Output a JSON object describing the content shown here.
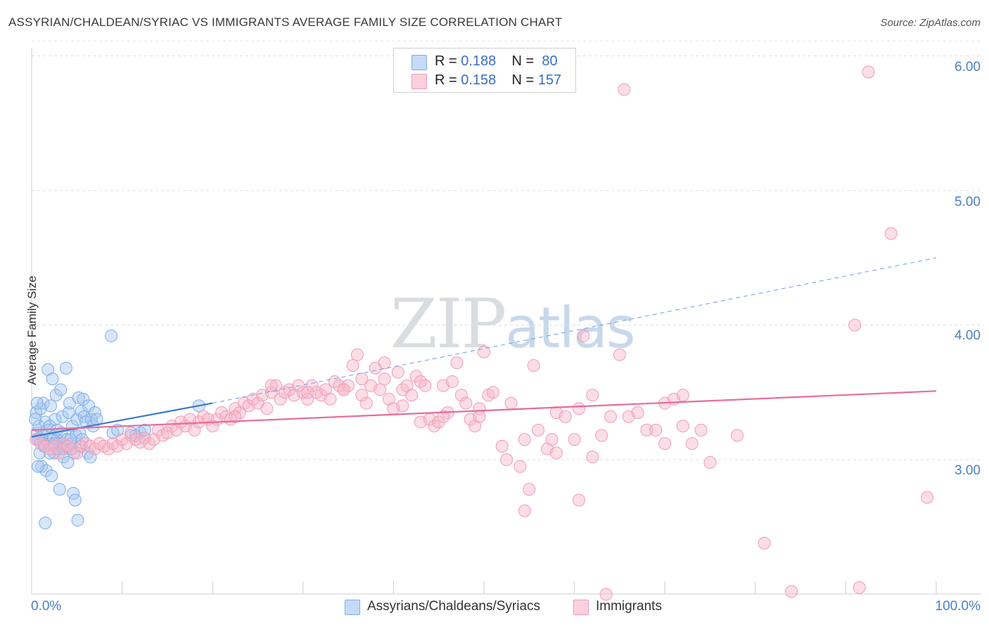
{
  "title": "ASSYRIAN/CHALDEAN/SYRIAC VS IMMIGRANTS AVERAGE FAMILY SIZE CORRELATION CHART",
  "source": "Source: ZipAtlas.com",
  "watermark": {
    "zip": "ZIP",
    "atlas": "atlas"
  },
  "legend": {
    "rows": [
      {
        "r_label": "R = ",
        "r_value": "0.188",
        "n_label": "N = ",
        "n_value": "80",
        "color": "#a9c8f0"
      },
      {
        "r_label": "R = ",
        "r_value": "0.158",
        "n_label": "N = ",
        "n_value": "157",
        "color": "#f7b6c8"
      }
    ]
  },
  "bottom_legend": [
    {
      "label": "Assyrians/Chaldeans/Syriacs",
      "color": "#a9c8f0"
    },
    {
      "label": "Immigrants",
      "color": "#f7b6c8"
    }
  ],
  "chart_data": {
    "type": "scatter",
    "title": "ASSYRIAN/CHALDEAN/SYRIAC VS IMMIGRANTS AVERAGE FAMILY SIZE CORRELATION CHART",
    "xlabel": "",
    "ylabel": "Average Family Size",
    "x_tick_labels": [
      "0.0%",
      "100.0%"
    ],
    "y_tick_labels": [
      "3.00",
      "4.00",
      "5.00",
      "6.00"
    ],
    "y_ticks": [
      3.0,
      4.0,
      5.0,
      6.0
    ],
    "xlim": [
      0,
      100
    ],
    "ylim": [
      2.0,
      6.1
    ],
    "grid": true,
    "legend_position": "top-center",
    "series": [
      {
        "name": "Assyrians/Chaldeans/Syriacs",
        "color": "#7aaee8",
        "trend": {
          "x": [
            0,
            20
          ],
          "y": [
            3.17,
            3.42
          ],
          "style": "solid"
        },
        "trend_extension": {
          "x": [
            20,
            100
          ],
          "y": [
            3.42,
            4.5
          ],
          "style": "dashed"
        },
        "points": [
          [
            0.5,
            3.35
          ],
          [
            0.6,
            3.2
          ],
          [
            0.7,
            3.15
          ],
          [
            0.8,
            3.25
          ],
          [
            0.9,
            3.05
          ],
          [
            1.0,
            3.38
          ],
          [
            1.1,
            2.95
          ],
          [
            1.2,
            3.18
          ],
          [
            1.3,
            3.42
          ],
          [
            1.4,
            3.1
          ],
          [
            1.5,
            3.28
          ],
          [
            1.6,
            2.92
          ],
          [
            1.7,
            3.22
          ],
          [
            1.8,
            3.67
          ],
          [
            1.9,
            3.12
          ],
          [
            2.0,
            3.25
          ],
          [
            2.1,
            3.4
          ],
          [
            2.2,
            2.88
          ],
          [
            2.3,
            3.6
          ],
          [
            2.4,
            3.17
          ],
          [
            2.5,
            3.05
          ],
          [
            2.6,
            3.3
          ],
          [
            2.7,
            3.48
          ],
          [
            2.8,
            3.15
          ],
          [
            2.9,
            3.08
          ],
          [
            3.0,
            3.12
          ],
          [
            3.1,
            2.78
          ],
          [
            3.2,
            3.52
          ],
          [
            3.3,
            3.2
          ],
          [
            3.4,
            3.32
          ],
          [
            3.5,
            3.02
          ],
          [
            3.6,
            3.1
          ],
          [
            3.8,
            3.68
          ],
          [
            3.9,
            3.15
          ],
          [
            4.0,
            2.98
          ],
          [
            4.1,
            3.35
          ],
          [
            4.2,
            3.42
          ],
          [
            4.3,
            3.08
          ],
          [
            4.4,
            3.12
          ],
          [
            4.5,
            3.25
          ],
          [
            4.6,
            2.75
          ],
          [
            4.7,
            3.05
          ],
          [
            4.8,
            2.7
          ],
          [
            4.9,
            3.18
          ],
          [
            5.0,
            3.3
          ],
          [
            5.1,
            2.55
          ],
          [
            5.2,
            3.46
          ],
          [
            5.3,
            3.2
          ],
          [
            5.4,
            3.1
          ],
          [
            5.5,
            3.36
          ],
          [
            5.6,
            3.15
          ],
          [
            5.8,
            3.32
          ],
          [
            6.0,
            3.28
          ],
          [
            5.7,
            3.45
          ],
          [
            6.2,
            3.05
          ],
          [
            6.3,
            3.4
          ],
          [
            6.5,
            3.02
          ],
          [
            6.6,
            3.3
          ],
          [
            6.8,
            3.25
          ],
          [
            7.0,
            3.35
          ],
          [
            7.2,
            3.3
          ],
          [
            1.5,
            2.53
          ],
          [
            0.9,
            3.15
          ],
          [
            1.3,
            3.12
          ],
          [
            2.0,
            3.05
          ],
          [
            0.6,
            3.42
          ],
          [
            2.5,
            3.12
          ],
          [
            3.5,
            3.08
          ],
          [
            0.4,
            3.3
          ],
          [
            0.7,
            2.95
          ],
          [
            9.0,
            3.2
          ],
          [
            9.5,
            3.22
          ],
          [
            11.0,
            3.2
          ],
          [
            11.5,
            3.18
          ],
          [
            12.0,
            3.2
          ],
          [
            12.5,
            3.22
          ],
          [
            8.8,
            3.92
          ],
          [
            18.5,
            3.4
          ],
          [
            4.3,
            3.15
          ],
          [
            2.8,
            3.22
          ]
        ]
      },
      {
        "name": "Immigrants",
        "color": "#f29bb6",
        "trend": {
          "x": [
            0,
            100
          ],
          "y": [
            3.22,
            3.51
          ],
          "style": "solid"
        },
        "points": [
          [
            0.5,
            3.15
          ],
          [
            1.0,
            3.12
          ],
          [
            1.5,
            3.1
          ],
          [
            2.0,
            3.08
          ],
          [
            2.5,
            3.1
          ],
          [
            3.0,
            3.05
          ],
          [
            3.5,
            3.12
          ],
          [
            4.0,
            3.1
          ],
          [
            4.5,
            3.08
          ],
          [
            5.0,
            3.05
          ],
          [
            5.5,
            3.1
          ],
          [
            6.0,
            3.12
          ],
          [
            6.5,
            3.1
          ],
          [
            7.0,
            3.08
          ],
          [
            7.5,
            3.12
          ],
          [
            8.0,
            3.1
          ],
          [
            8.5,
            3.08
          ],
          [
            9.0,
            3.12
          ],
          [
            9.5,
            3.1
          ],
          [
            10.0,
            3.15
          ],
          [
            10.5,
            3.12
          ],
          [
            11.0,
            3.18
          ],
          [
            11.5,
            3.15
          ],
          [
            12.0,
            3.13
          ],
          [
            12.5,
            3.16
          ],
          [
            13.0,
            3.12
          ],
          [
            13.5,
            3.15
          ],
          [
            14.0,
            3.22
          ],
          [
            14.5,
            3.18
          ],
          [
            15.0,
            3.2
          ],
          [
            15.5,
            3.25
          ],
          [
            16.0,
            3.22
          ],
          [
            16.5,
            3.28
          ],
          [
            17.0,
            3.25
          ],
          [
            17.5,
            3.3
          ],
          [
            18.0,
            3.22
          ],
          [
            18.5,
            3.28
          ],
          [
            19.0,
            3.32
          ],
          [
            19.5,
            3.3
          ],
          [
            20.0,
            3.25
          ],
          [
            20.5,
            3.3
          ],
          [
            21.0,
            3.35
          ],
          [
            21.5,
            3.32
          ],
          [
            22.0,
            3.3
          ],
          [
            22.5,
            3.38
          ],
          [
            23.0,
            3.35
          ],
          [
            23.5,
            3.42
          ],
          [
            24.0,
            3.4
          ],
          [
            24.5,
            3.45
          ],
          [
            25.0,
            3.42
          ],
          [
            25.5,
            3.48
          ],
          [
            26.0,
            3.38
          ],
          [
            26.5,
            3.5
          ],
          [
            27.0,
            3.55
          ],
          [
            27.5,
            3.45
          ],
          [
            28.0,
            3.5
          ],
          [
            28.5,
            3.52
          ],
          [
            29.0,
            3.48
          ],
          [
            29.5,
            3.55
          ],
          [
            30.0,
            3.5
          ],
          [
            30.5,
            3.45
          ],
          [
            31.0,
            3.55
          ],
          [
            31.5,
            3.5
          ],
          [
            32.0,
            3.48
          ],
          [
            32.5,
            3.52
          ],
          [
            33.0,
            3.45
          ],
          [
            33.5,
            3.58
          ],
          [
            34.0,
            3.55
          ],
          [
            34.5,
            3.52
          ],
          [
            35.0,
            3.55
          ],
          [
            35.5,
            3.7
          ],
          [
            36.0,
            3.78
          ],
          [
            36.5,
            3.48
          ],
          [
            37.0,
            3.42
          ],
          [
            37.5,
            3.55
          ],
          [
            38.0,
            3.68
          ],
          [
            38.5,
            3.52
          ],
          [
            39.0,
            3.6
          ],
          [
            39.5,
            3.45
          ],
          [
            40.0,
            3.38
          ],
          [
            40.5,
            3.65
          ],
          [
            41.0,
            3.52
          ],
          [
            41.5,
            3.55
          ],
          [
            42.0,
            3.48
          ],
          [
            42.5,
            3.62
          ],
          [
            43.0,
            3.58
          ],
          [
            43.5,
            3.55
          ],
          [
            44.0,
            3.3
          ],
          [
            44.5,
            3.25
          ],
          [
            45.0,
            3.28
          ],
          [
            45.5,
            3.55
          ],
          [
            46.0,
            3.35
          ],
          [
            46.5,
            3.58
          ],
          [
            47.0,
            3.72
          ],
          [
            47.5,
            3.48
          ],
          [
            48.0,
            3.42
          ],
          [
            48.5,
            3.3
          ],
          [
            49.0,
            3.25
          ],
          [
            49.5,
            3.38
          ],
          [
            50.0,
            3.8
          ],
          [
            50.5,
            3.48
          ],
          [
            51.0,
            3.5
          ],
          [
            52.0,
            3.1
          ],
          [
            52.5,
            3.0
          ],
          [
            53.0,
            3.42
          ],
          [
            54.0,
            2.95
          ],
          [
            54.5,
            3.15
          ],
          [
            55.0,
            2.78
          ],
          [
            55.5,
            3.7
          ],
          [
            56.0,
            3.22
          ],
          [
            57.0,
            3.08
          ],
          [
            57.5,
            3.15
          ],
          [
            58.0,
            3.35
          ],
          [
            59.0,
            3.32
          ],
          [
            60.0,
            3.15
          ],
          [
            60.5,
            3.38
          ],
          [
            61.0,
            3.92
          ],
          [
            62.0,
            3.48
          ],
          [
            63.0,
            3.18
          ],
          [
            64.0,
            3.32
          ],
          [
            65.0,
            3.78
          ],
          [
            66.0,
            3.32
          ],
          [
            67.0,
            3.35
          ],
          [
            68.0,
            3.22
          ],
          [
            69.0,
            3.22
          ],
          [
            70.0,
            3.12
          ],
          [
            71.0,
            3.45
          ],
          [
            72.0,
            3.25
          ],
          [
            73.0,
            3.12
          ],
          [
            74.0,
            3.22
          ],
          [
            75.0,
            2.98
          ],
          [
            78.0,
            3.18
          ],
          [
            81.0,
            2.38
          ],
          [
            54.5,
            2.62
          ],
          [
            60.5,
            2.7
          ],
          [
            58.0,
            3.05
          ],
          [
            62.0,
            3.02
          ],
          [
            70.0,
            3.42
          ],
          [
            72.0,
            3.48
          ],
          [
            36.5,
            3.6
          ],
          [
            39.0,
            3.72
          ],
          [
            30.5,
            3.5
          ],
          [
            26.5,
            3.55
          ],
          [
            45.5,
            3.32
          ],
          [
            91.0,
            4.0
          ],
          [
            95.0,
            4.68
          ],
          [
            99.0,
            2.72
          ],
          [
            91.5,
            2.05
          ],
          [
            84.0,
            2.02
          ],
          [
            65.5,
            5.75
          ],
          [
            92.5,
            5.88
          ],
          [
            63.5,
            2.0
          ],
          [
            49.5,
            3.32
          ],
          [
            41.0,
            3.4
          ],
          [
            43.0,
            3.28
          ],
          [
            34.5,
            3.52
          ],
          [
            22.5,
            3.32
          ]
        ]
      }
    ]
  }
}
